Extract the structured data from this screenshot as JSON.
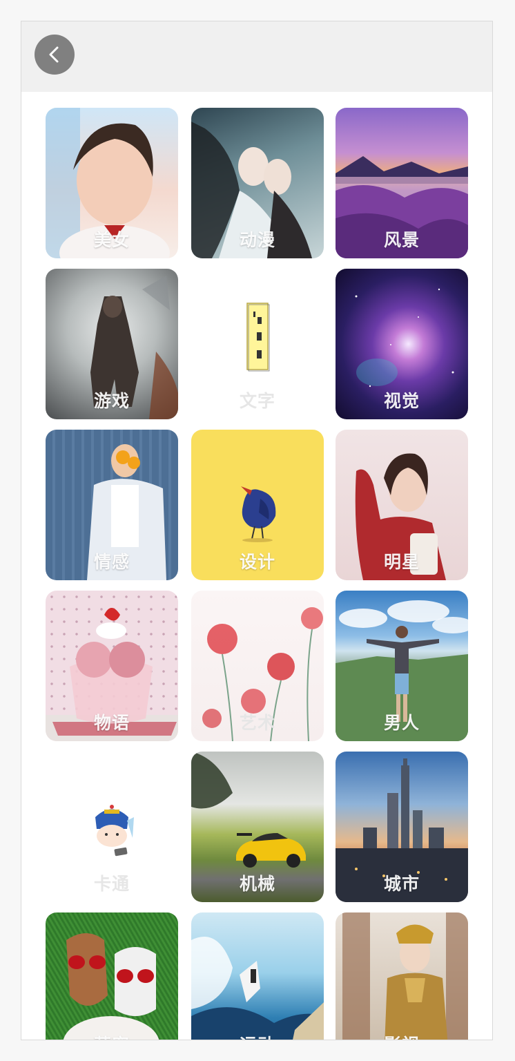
{
  "header": {
    "back_icon": "chevron-left-icon"
  },
  "categories": [
    {
      "label": "美女",
      "icon": "photo-girl"
    },
    {
      "label": "动漫",
      "icon": "photo-anime"
    },
    {
      "label": "风景",
      "icon": "photo-landscape"
    },
    {
      "label": "游戏",
      "icon": "photo-game"
    },
    {
      "label": "文字",
      "icon": "photo-text-scroll"
    },
    {
      "label": "视觉",
      "icon": "photo-galaxy"
    },
    {
      "label": "情感",
      "icon": "photo-emotion"
    },
    {
      "label": "设计",
      "icon": "photo-design-bird"
    },
    {
      "label": "明星",
      "icon": "photo-star"
    },
    {
      "label": "物语",
      "icon": "photo-icecream"
    },
    {
      "label": "艺术",
      "icon": "photo-flowers"
    },
    {
      "label": "男人",
      "icon": "photo-man"
    },
    {
      "label": "卡通",
      "icon": "photo-cartoon"
    },
    {
      "label": "机械",
      "icon": "photo-car"
    },
    {
      "label": "城市",
      "icon": "photo-city"
    },
    {
      "label": "萌宠",
      "icon": "photo-dogs"
    },
    {
      "label": "运动",
      "icon": "photo-surf"
    },
    {
      "label": "影视",
      "icon": "photo-drama"
    }
  ]
}
